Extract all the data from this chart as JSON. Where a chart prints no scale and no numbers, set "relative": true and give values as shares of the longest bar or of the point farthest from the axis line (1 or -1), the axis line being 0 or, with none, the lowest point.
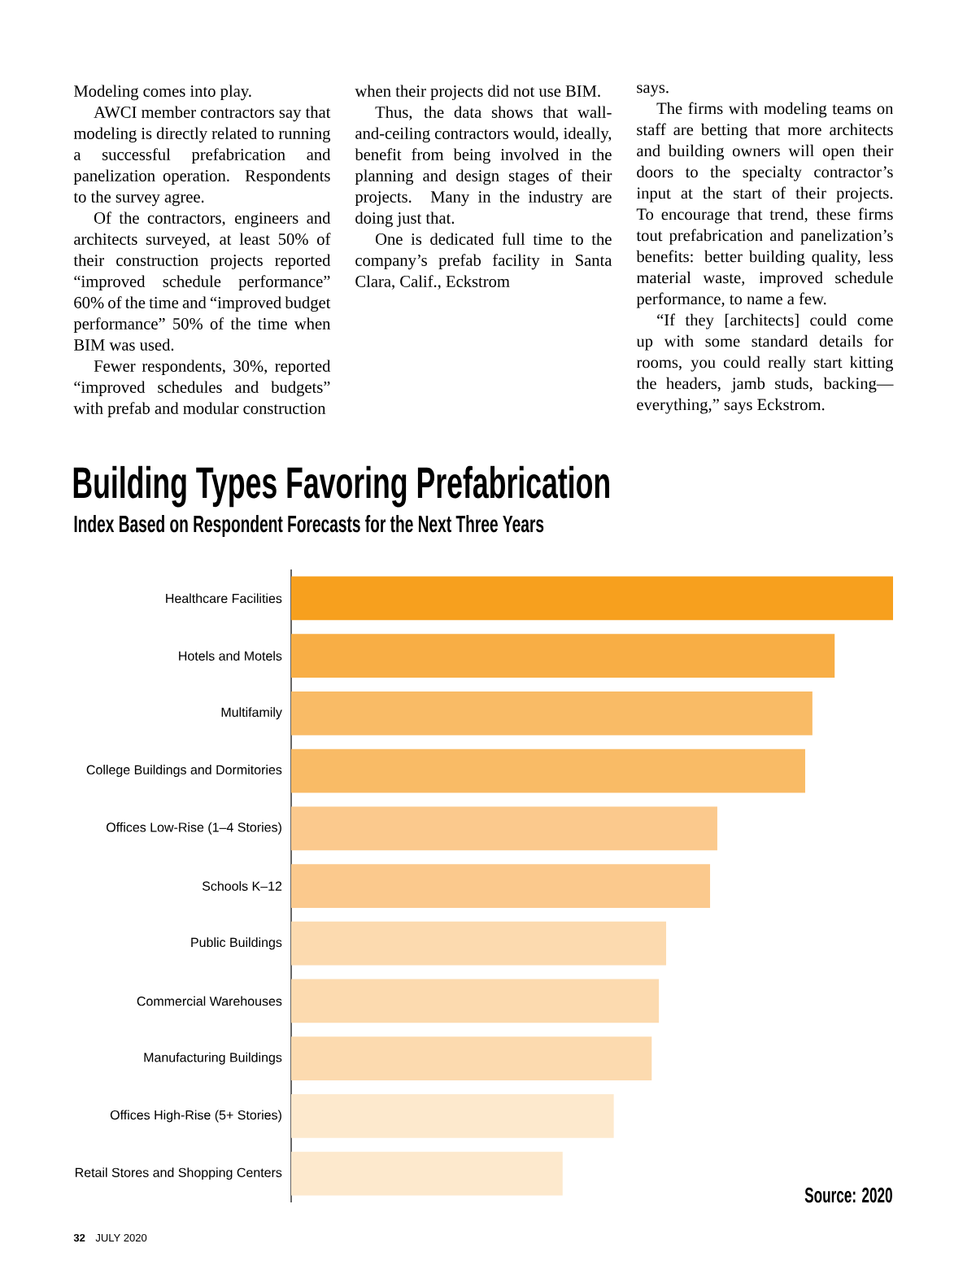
{
  "chart_data": {
    "type": "bar",
    "orientation": "horizontal",
    "relative": true,
    "title": "Building Types Favoring Prefabrication",
    "subtitle": "Index Based on Respondent Forecasts for the Next Three Years",
    "categories": [
      "Healthcare Facilities",
      "Hotels and Motels",
      "Multifamily",
      "College Buildings and Dormitories",
      "Offices Low-Rise (1–4 Stories)",
      "Schools K–12",
      "Public Buildings",
      "Commercial Warehouses",
      "Manufacturing Buildings",
      "Offices High-Rise (5+ Stories)",
      "Retail Stores and Shopping Centers"
    ],
    "values": [
      1,
      0.903,
      0.866,
      0.854,
      0.708,
      0.696,
      0.623,
      0.611,
      0.599,
      0.536,
      0.451
    ],
    "colors": [
      "#f7a01e",
      "#f8ae45",
      "#f9bb66",
      "#f9bb66",
      "#fbc98d",
      "#fbc98d",
      "#fcdaaf",
      "#fcdaaf",
      "#fcdaaf",
      "#fde9cd",
      "#fde9cd"
    ],
    "annotations": [
      "Modeling comes into play.",
      "AWCI member contractors say that modeling is directly related to running a successful prefabrication and panelization operation. Respondents to the survey agree.",
      "Of the contractors, engineers and architects surveyed, at least 50% of their construction projects reported “improved schedule performance” 60% of the time and “improved budget performance” 50% of the time when BIM was used.",
      "Fewer respondents, 30%, reported “improved schedules and budgets” with prefab and modular construction",
      "when their projects did not use BIM.",
      "Thus, the data shows that wall-and-ceiling contractors would, ideally, benefit from being involved in the planning and design stages of their projects. Many in the industry are doing just that.",
      "One is dedicated full time to the company’s prefab facility in Santa Clara, Calif., Eckstrom",
      "says.",
      "The firms with modeling teams on staff are betting that more architects and building owners will open their doors to the specialty contractor’s input at the start of their projects. To encourage that trend, these firms tout prefabrication and panelization’s benefits: better building quality, less material waste, improved schedule performance, to name a few.",
      "“If they [architects] could come up with some standard details for rooms, you could really start kitting the headers, jamb studs, backing—everything,” says Eckstrom.",
      "Source: 2020",
      "32",
      "JULY 2020"
    ]
  }
}
